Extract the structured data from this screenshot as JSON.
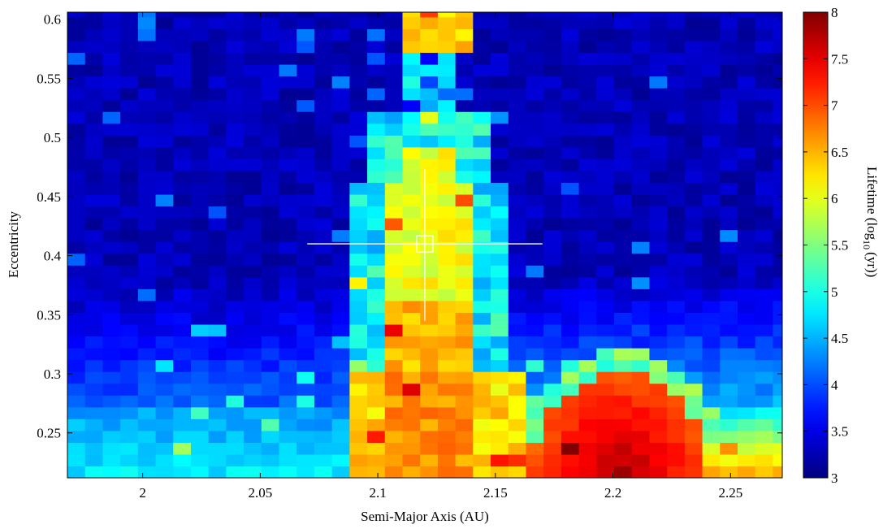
{
  "chart_data": {
    "type": "heatmap",
    "title": "",
    "xlabel": "Semi-Major Axis (AU)",
    "ylabel": "Eccentricity",
    "colorbar_label": "Lifetime (log",
    "colorbar_label_sub": "10",
    "colorbar_label_end": "(yr))",
    "xlim": [
      1.968,
      2.272
    ],
    "ylim": [
      0.212,
      0.606
    ],
    "clim": [
      3,
      8
    ],
    "colormap": "jet",
    "x_cell_width": 0.0075,
    "y_cell_height": 0.01,
    "x_ticks": [
      2,
      2.05,
      2.1,
      2.15,
      2.2,
      2.25
    ],
    "x_tick_labels": [
      "2",
      "2.05",
      "2.1",
      "2.15",
      "2.2",
      "2.25"
    ],
    "y_ticks": [
      0.25,
      0.3,
      0.35,
      0.4,
      0.45,
      0.5,
      0.55,
      0.6
    ],
    "y_tick_labels": [
      "0.25",
      "0.3",
      "0.35",
      "0.4",
      "0.45",
      "0.5",
      "0.55",
      "0.6"
    ],
    "c_ticks": [
      3,
      3.5,
      4,
      4.5,
      5,
      5.5,
      6,
      6.5,
      7,
      7.5,
      8
    ],
    "c_tick_labels": [
      "3",
      "3.5",
      "4",
      "4.5",
      "5",
      "5.5",
      "6",
      "6.5",
      "7",
      "7.5",
      "8"
    ],
    "features": {
      "background_lifetime": 3.1,
      "central_column": {
        "x_range": [
          2.102,
          2.142
        ],
        "lifetime": 6.2
      },
      "top_patch": {
        "x_range": [
          2.108,
          2.142
        ],
        "y_range": [
          0.57,
          0.606
        ],
        "lifetime": 6.4
      },
      "lower_hot_region": {
        "x_center": 2.205,
        "lifetime_peak": 7.7
      }
    },
    "marker": {
      "x": 2.12,
      "y": 0.41,
      "x_error": [
        2.07,
        2.17
      ],
      "y_error": [
        0.345,
        0.473
      ],
      "color": "#ffffff"
    },
    "grid": false,
    "legend": "none"
  }
}
